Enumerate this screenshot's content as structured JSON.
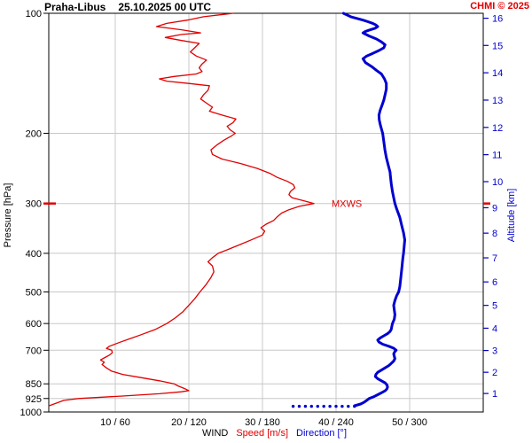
{
  "header": {
    "station": "Praha-Libus",
    "datetime": "25.10.2025 00 UTC",
    "copyright": "CHMI © 2025"
  },
  "axes": {
    "pressure": {
      "label": "Pressure [hPa]",
      "ticks": [
        100,
        200,
        300,
        400,
        500,
        600,
        700,
        850,
        925,
        1000
      ]
    },
    "altitude": {
      "label": "Altitude [km]",
      "ticks": [
        {
          "km": 1,
          "hPa": 898.7
        },
        {
          "km": 2,
          "hPa": 795.0
        },
        {
          "km": 3,
          "hPa": 701.1
        },
        {
          "km": 4,
          "hPa": 616.4
        },
        {
          "km": 5,
          "hPa": 540.2
        },
        {
          "km": 6,
          "hPa": 471.8
        },
        {
          "km": 7,
          "hPa": 410.6
        },
        {
          "km": 8,
          "hPa": 356.0
        },
        {
          "km": 9,
          "hPa": 307.4
        },
        {
          "km": 10,
          "hPa": 264.4
        },
        {
          "km": 11,
          "hPa": 226.3
        },
        {
          "km": 12,
          "hPa": 193.3
        },
        {
          "km": 13,
          "hPa": 165.1
        },
        {
          "km": 14,
          "hPa": 141.0
        },
        {
          "km": 15,
          "hPa": 120.4
        },
        {
          "km": 16,
          "hPa": 102.9
        }
      ]
    },
    "x": {
      "group_label": "WIND",
      "speed_label": "Speed [m/s]",
      "direction_label": "Direction [°]",
      "ticks": [
        {
          "speed": 10,
          "direction": 60,
          "label": "10 / 60"
        },
        {
          "speed": 20,
          "direction": 120,
          "label": "20 / 120"
        },
        {
          "speed": 30,
          "direction": 180,
          "label": "30 / 180"
        },
        {
          "speed": 40,
          "direction": 240,
          "label": "40 / 240"
        },
        {
          "speed": 50,
          "direction": 300,
          "label": "50 / 300"
        }
      ]
    }
  },
  "annotations": {
    "mxws": {
      "label": "MXWS",
      "pressure": 300
    }
  },
  "colors": {
    "speed": "#e00000",
    "direction": "#0000d0",
    "altitude_axis": "#0000d0",
    "grid": "#c8c8c8",
    "frame": "#000000",
    "copyright": "#e00000"
  },
  "chart_data": {
    "type": "line",
    "title": "Praha-Libus 25.10.2025 00 UTC",
    "y_axis": {
      "label": "Pressure [hPa]",
      "scale": "log",
      "range": [
        100,
        1000
      ]
    },
    "x_axis": {
      "label": "WIND",
      "speed_unit": "m/s",
      "direction_unit": "°",
      "tick_labels": [
        "10 / 60",
        "20 / 120",
        "30 / 180",
        "40 / 240",
        "50 / 300"
      ]
    },
    "legend": [
      "Speed [m/s]",
      "Direction [°]"
    ],
    "series": [
      {
        "name": "Wind speed",
        "axis": "speed",
        "unit": "m/s",
        "color": "#e00000",
        "width": 1.3,
        "points": [
          [
            965,
            1
          ],
          [
            950,
            2
          ],
          [
            935,
            3
          ],
          [
            925,
            5
          ],
          [
            912,
            11
          ],
          [
            900,
            16
          ],
          [
            890,
            19
          ],
          [
            884,
            20
          ],
          [
            875,
            19.5
          ],
          [
            860,
            18.5
          ],
          [
            850,
            18
          ],
          [
            835,
            16
          ],
          [
            820,
            13.5
          ],
          [
            805,
            11
          ],
          [
            790,
            9.5
          ],
          [
            775,
            8.8
          ],
          [
            760,
            8.2
          ],
          [
            750,
            8.5
          ],
          [
            740,
            8
          ],
          [
            730,
            8.6
          ],
          [
            720,
            9.2
          ],
          [
            710,
            9.6
          ],
          [
            700,
            9.5
          ],
          [
            693,
            8.8
          ],
          [
            684,
            9.2
          ],
          [
            670,
            10.5
          ],
          [
            655,
            12
          ],
          [
            640,
            13.5
          ],
          [
            620,
            15.5
          ],
          [
            600,
            17
          ],
          [
            580,
            18.2
          ],
          [
            560,
            19.2
          ],
          [
            540,
            20
          ],
          [
            520,
            20.8
          ],
          [
            500,
            21.5
          ],
          [
            480,
            22.3
          ],
          [
            460,
            23
          ],
          [
            445,
            23.4
          ],
          [
            430,
            23.2
          ],
          [
            420,
            22.6
          ],
          [
            410,
            23.2
          ],
          [
            400,
            24
          ],
          [
            390,
            25.5
          ],
          [
            380,
            27
          ],
          [
            370,
            28.5
          ],
          [
            360,
            30
          ],
          [
            352,
            30.3
          ],
          [
            345,
            29.8
          ],
          [
            338,
            30.5
          ],
          [
            331,
            31.5
          ],
          [
            324,
            32
          ],
          [
            317,
            32.6
          ],
          [
            311,
            33.6
          ],
          [
            305,
            35
          ],
          [
            300,
            37
          ],
          [
            295,
            35.5
          ],
          [
            290,
            34
          ],
          [
            285,
            33.6
          ],
          [
            280,
            33.8
          ],
          [
            274,
            34.4
          ],
          [
            269,
            34.2
          ],
          [
            264,
            33.4
          ],
          [
            258,
            32
          ],
          [
            252,
            31
          ],
          [
            245,
            29.3
          ],
          [
            238,
            27
          ],
          [
            232,
            24.5
          ],
          [
            226,
            23.2
          ],
          [
            220,
            23
          ],
          [
            214,
            23.8
          ],
          [
            208,
            24.8
          ],
          [
            203,
            25.8
          ],
          [
            200,
            26.3
          ],
          [
            196,
            25.6
          ],
          [
            192,
            25.2
          ],
          [
            188,
            26
          ],
          [
            184,
            26.4
          ],
          [
            180,
            24.5
          ],
          [
            176,
            22.8
          ],
          [
            172,
            23.2
          ],
          [
            168,
            22.4
          ],
          [
            164,
            21.6
          ],
          [
            160,
            22
          ],
          [
            156,
            22.6
          ],
          [
            152,
            22.8
          ],
          [
            150,
            20
          ],
          [
            148,
            17
          ],
          [
            146,
            16
          ],
          [
            144,
            18
          ],
          [
            142,
            21
          ],
          [
            140,
            21.8
          ],
          [
            137,
            21.4
          ],
          [
            134,
            21.8
          ],
          [
            131,
            22.4
          ],
          [
            128,
            21
          ],
          [
            125,
            20.2
          ],
          [
            122,
            20.8
          ],
          [
            119,
            21.4
          ],
          [
            117,
            19
          ],
          [
            115,
            16.8
          ],
          [
            113,
            19
          ],
          [
            112,
            21.6
          ],
          [
            110,
            19
          ],
          [
            108,
            15.6
          ],
          [
            106,
            17
          ],
          [
            104,
            19.8
          ],
          [
            102,
            22
          ],
          [
            100,
            26
          ]
        ]
      },
      {
        "name": "Wind direction",
        "axis": "direction",
        "unit": "°",
        "color": "#0000d0",
        "width": 3,
        "points": [
          [
            965,
            255
          ],
          [
            955,
            260
          ],
          [
            945,
            263
          ],
          [
            935,
            265
          ],
          [
            925,
            267
          ],
          [
            915,
            271
          ],
          [
            905,
            274
          ],
          [
            895,
            277
          ],
          [
            885,
            280
          ],
          [
            875,
            281.5
          ],
          [
            865,
            282
          ],
          [
            855,
            281.5
          ],
          [
            845,
            280
          ],
          [
            835,
            277
          ],
          [
            825,
            274
          ],
          [
            815,
            272
          ],
          [
            805,
            272.5
          ],
          [
            795,
            274
          ],
          [
            785,
            277
          ],
          [
            775,
            280
          ],
          [
            765,
            283
          ],
          [
            755,
            285
          ],
          [
            745,
            287
          ],
          [
            735,
            288
          ],
          [
            725,
            287.5
          ],
          [
            715,
            287
          ],
          [
            705,
            288
          ],
          [
            700,
            289
          ],
          [
            692,
            287
          ],
          [
            684,
            283
          ],
          [
            676,
            278
          ],
          [
            668,
            275
          ],
          [
            660,
            274
          ],
          [
            652,
            276
          ],
          [
            644,
            279
          ],
          [
            636,
            282
          ],
          [
            628,
            284
          ],
          [
            620,
            285
          ],
          [
            610,
            285.5
          ],
          [
            600,
            286
          ],
          [
            585,
            287.5
          ],
          [
            570,
            288
          ],
          [
            555,
            287.5
          ],
          [
            540,
            287
          ],
          [
            525,
            288
          ],
          [
            510,
            289.5
          ],
          [
            500,
            291
          ],
          [
            485,
            292
          ],
          [
            470,
            292.5
          ],
          [
            455,
            293
          ],
          [
            440,
            293.5
          ],
          [
            425,
            294
          ],
          [
            410,
            294.5
          ],
          [
            400,
            295
          ],
          [
            385,
            295.5
          ],
          [
            370,
            296
          ],
          [
            355,
            295
          ],
          [
            340,
            293.5
          ],
          [
            325,
            292
          ],
          [
            310,
            289.5
          ],
          [
            300,
            288
          ],
          [
            290,
            287
          ],
          [
            280,
            286
          ],
          [
            268,
            285
          ],
          [
            256,
            284.3
          ],
          [
            250,
            284
          ],
          [
            240,
            282.5
          ],
          [
            230,
            281
          ],
          [
            220,
            279.8
          ],
          [
            210,
            279
          ],
          [
            200,
            278
          ],
          [
            195,
            277
          ],
          [
            190,
            276
          ],
          [
            185,
            275.2
          ],
          [
            180,
            275
          ],
          [
            175,
            276
          ],
          [
            170,
            277.5
          ],
          [
            165,
            279
          ],
          [
            160,
            280
          ],
          [
            155,
            281
          ],
          [
            150,
            281
          ],
          [
            146,
            279.5
          ],
          [
            142,
            277
          ],
          [
            139,
            273
          ],
          [
            136,
            269
          ],
          [
            133,
            264
          ],
          [
            130,
            262
          ],
          [
            128,
            265
          ],
          [
            126,
            270
          ],
          [
            124,
            275
          ],
          [
            122,
            279
          ],
          [
            120,
            280
          ],
          [
            118,
            277
          ],
          [
            116,
            273
          ],
          [
            114,
            267
          ],
          [
            112,
            262
          ],
          [
            111,
            264
          ],
          [
            110,
            268
          ],
          [
            109,
            272
          ],
          [
            108,
            274
          ],
          [
            107,
            272.5
          ],
          [
            106,
            270
          ],
          [
            105,
            266
          ],
          [
            104,
            262
          ],
          [
            103,
            257
          ],
          [
            102,
            252
          ],
          [
            101,
            249
          ],
          [
            100,
            246
          ]
        ]
      }
    ],
    "direction_dots": {
      "pressure": 968,
      "directions": [
        205,
        210,
        215,
        220,
        225,
        230,
        235,
        240,
        245,
        250,
        255
      ]
    },
    "max_wind": {
      "label": "MXWS",
      "pressure": 300,
      "speed": 37
    }
  }
}
